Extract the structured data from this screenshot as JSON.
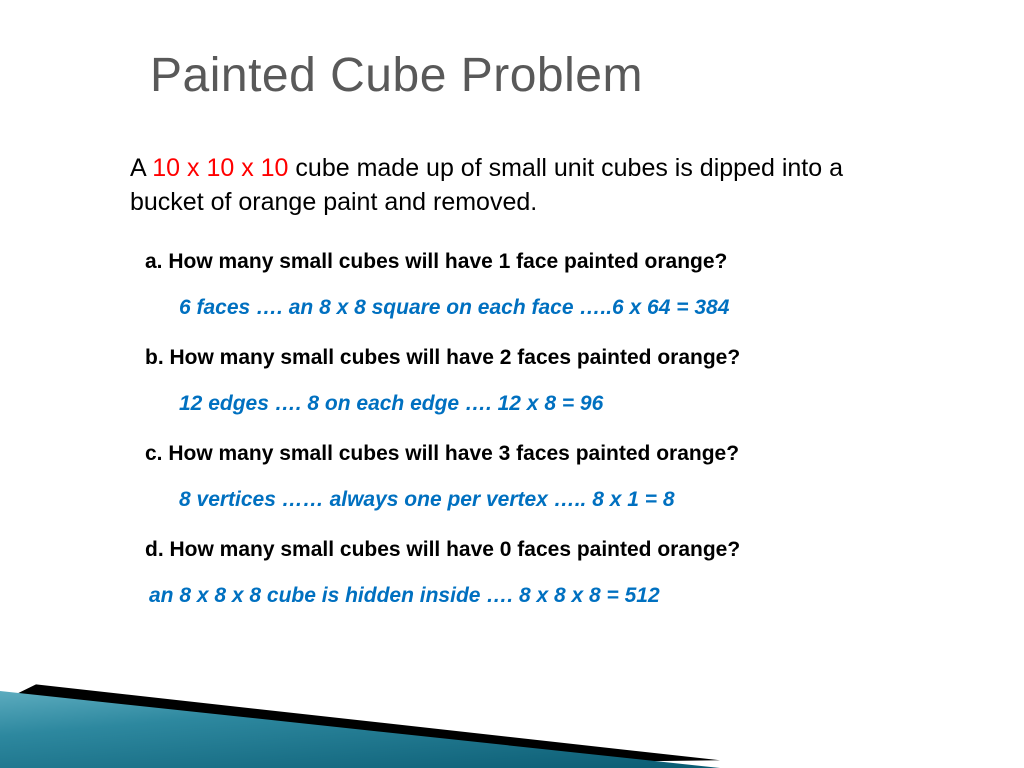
{
  "title": "Painted Cube Problem",
  "intro_prefix": "A ",
  "intro_dim": "10 x 10 x 10",
  "intro_suffix": " cube made up of small unit cubes is dipped into a bucket of orange paint and removed.",
  "qa": {
    "q_a": "a. How many small cubes will have 1 face painted orange?",
    "a_a": "6 faces …. an 8 x 8 square on each face …..6 x 64 = 384",
    "q_b": "b. How many small cubes will have 2 faces painted orange?",
    "a_b": "12 edges …. 8 on each edge …. 12 x 8 = 96",
    "q_c": "c. How many small cubes will have 3 faces painted orange?",
    "a_c": "8 vertices …… always one per vertex ….. 8 x 1 = 8",
    "q_d": "d. How many small cubes will have 0 faces painted orange?",
    "a_d": "an 8 x 8 x 8 cube is hidden inside …. 8 x 8 x 8 = 512"
  },
  "style": {
    "title_color": "#595959",
    "title_fontsize": 48,
    "body_color": "#000000",
    "dim_color": "#ff0000",
    "answer_color": "#0070c0",
    "intro_fontsize": 25,
    "qa_fontsize": 21,
    "background": "#ffffff",
    "wedge_gradient": [
      "#7fc6d6",
      "#2d889f",
      "#0a5b72"
    ],
    "wedge_accent": "#000000"
  }
}
